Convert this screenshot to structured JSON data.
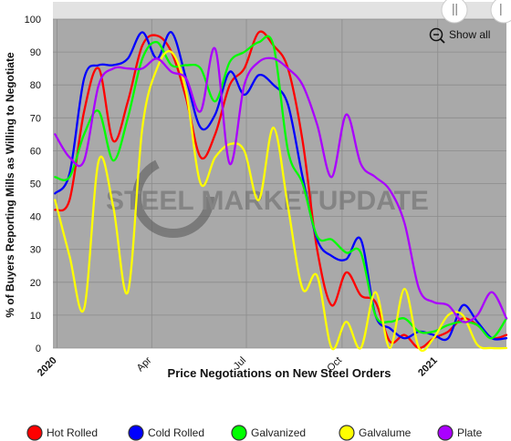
{
  "chart_data": {
    "type": "line",
    "title": "",
    "xlabel": "Price Negotiations on New Steel Orders",
    "ylabel": "% of Buyers Reporting Mills as Willing to Negotiate",
    "ylim": [
      0,
      100
    ],
    "yticks": [
      0,
      10,
      20,
      30,
      40,
      50,
      60,
      70,
      80,
      90,
      100
    ],
    "xlim": [
      "2019-12-28",
      "2021-03-08"
    ],
    "xticks": [
      {
        "label": "2020",
        "date": "2020-01-01",
        "bold": true
      },
      {
        "label": "Apr",
        "date": "2020-04-01",
        "bold": false
      },
      {
        "label": "Jul",
        "date": "2020-07-01",
        "bold": false
      },
      {
        "label": "Oct",
        "date": "2020-10-01",
        "bold": false
      },
      {
        "label": "2021",
        "date": "2021-01-01",
        "bold": true
      }
    ],
    "grid": true,
    "legend_position": "bottom",
    "x": [
      "2019-12-30",
      "2020-01-13",
      "2020-01-27",
      "2020-02-10",
      "2020-02-24",
      "2020-03-09",
      "2020-03-23",
      "2020-04-06",
      "2020-04-20",
      "2020-05-04",
      "2020-05-18",
      "2020-06-01",
      "2020-06-15",
      "2020-06-29",
      "2020-07-13",
      "2020-07-27",
      "2020-08-10",
      "2020-08-24",
      "2020-09-07",
      "2020-09-21",
      "2020-10-05",
      "2020-10-19",
      "2020-11-02",
      "2020-11-16",
      "2020-11-30",
      "2020-12-14",
      "2020-12-28",
      "2021-01-11",
      "2021-01-25",
      "2021-02-08",
      "2021-02-22",
      "2021-03-08"
    ],
    "series": [
      {
        "name": "Hot Rolled",
        "color": "#ff0000",
        "values": [
          42,
          45,
          72,
          85,
          63,
          75,
          92,
          95,
          90,
          76,
          58,
          65,
          80,
          85,
          96,
          92,
          85,
          63,
          30,
          13,
          23,
          16,
          14,
          2,
          4,
          0,
          3,
          5,
          9,
          7,
          3,
          4
        ]
      },
      {
        "name": "Cold Rolled",
        "color": "#0000ff",
        "values": [
          47,
          53,
          82,
          86,
          86,
          88,
          96,
          88,
          96,
          82,
          67,
          71,
          84,
          77,
          83,
          80,
          74,
          52,
          33,
          28,
          27,
          33,
          10,
          6,
          3,
          5,
          4,
          3,
          13,
          8,
          3,
          3
        ]
      },
      {
        "name": "Galvanized",
        "color": "#00ff00",
        "values": [
          52,
          52,
          65,
          72,
          57,
          70,
          88,
          93,
          86,
          86,
          85,
          75,
          87,
          90,
          93,
          92,
          60,
          50,
          34,
          33,
          29,
          29,
          10,
          8,
          9,
          5,
          5,
          7,
          8,
          7,
          3,
          9
        ]
      },
      {
        "name": "Galvalume",
        "color": "#ffff00",
        "values": [
          45,
          28,
          12,
          57,
          43,
          17,
          67,
          85,
          90,
          78,
          50,
          58,
          62,
          60,
          45,
          67,
          43,
          18,
          22,
          0,
          8,
          0,
          17,
          0,
          18,
          0,
          3,
          10,
          10,
          1,
          0,
          0
        ]
      },
      {
        "name": "Plate",
        "color": "#aa00ff",
        "values": [
          65,
          58,
          57,
          80,
          85,
          85,
          85,
          88,
          84,
          82,
          72,
          91,
          56,
          80,
          87,
          88,
          85,
          80,
          68,
          52,
          71,
          56,
          52,
          48,
          38,
          18,
          14,
          13,
          8,
          10,
          17,
          9
        ]
      }
    ],
    "watermark": "STEEL MARKETUPDATE"
  },
  "ui": {
    "show_all": "Show all",
    "zoom_icon": "zoom-out-icon",
    "pause_icon": "pause-icon"
  }
}
